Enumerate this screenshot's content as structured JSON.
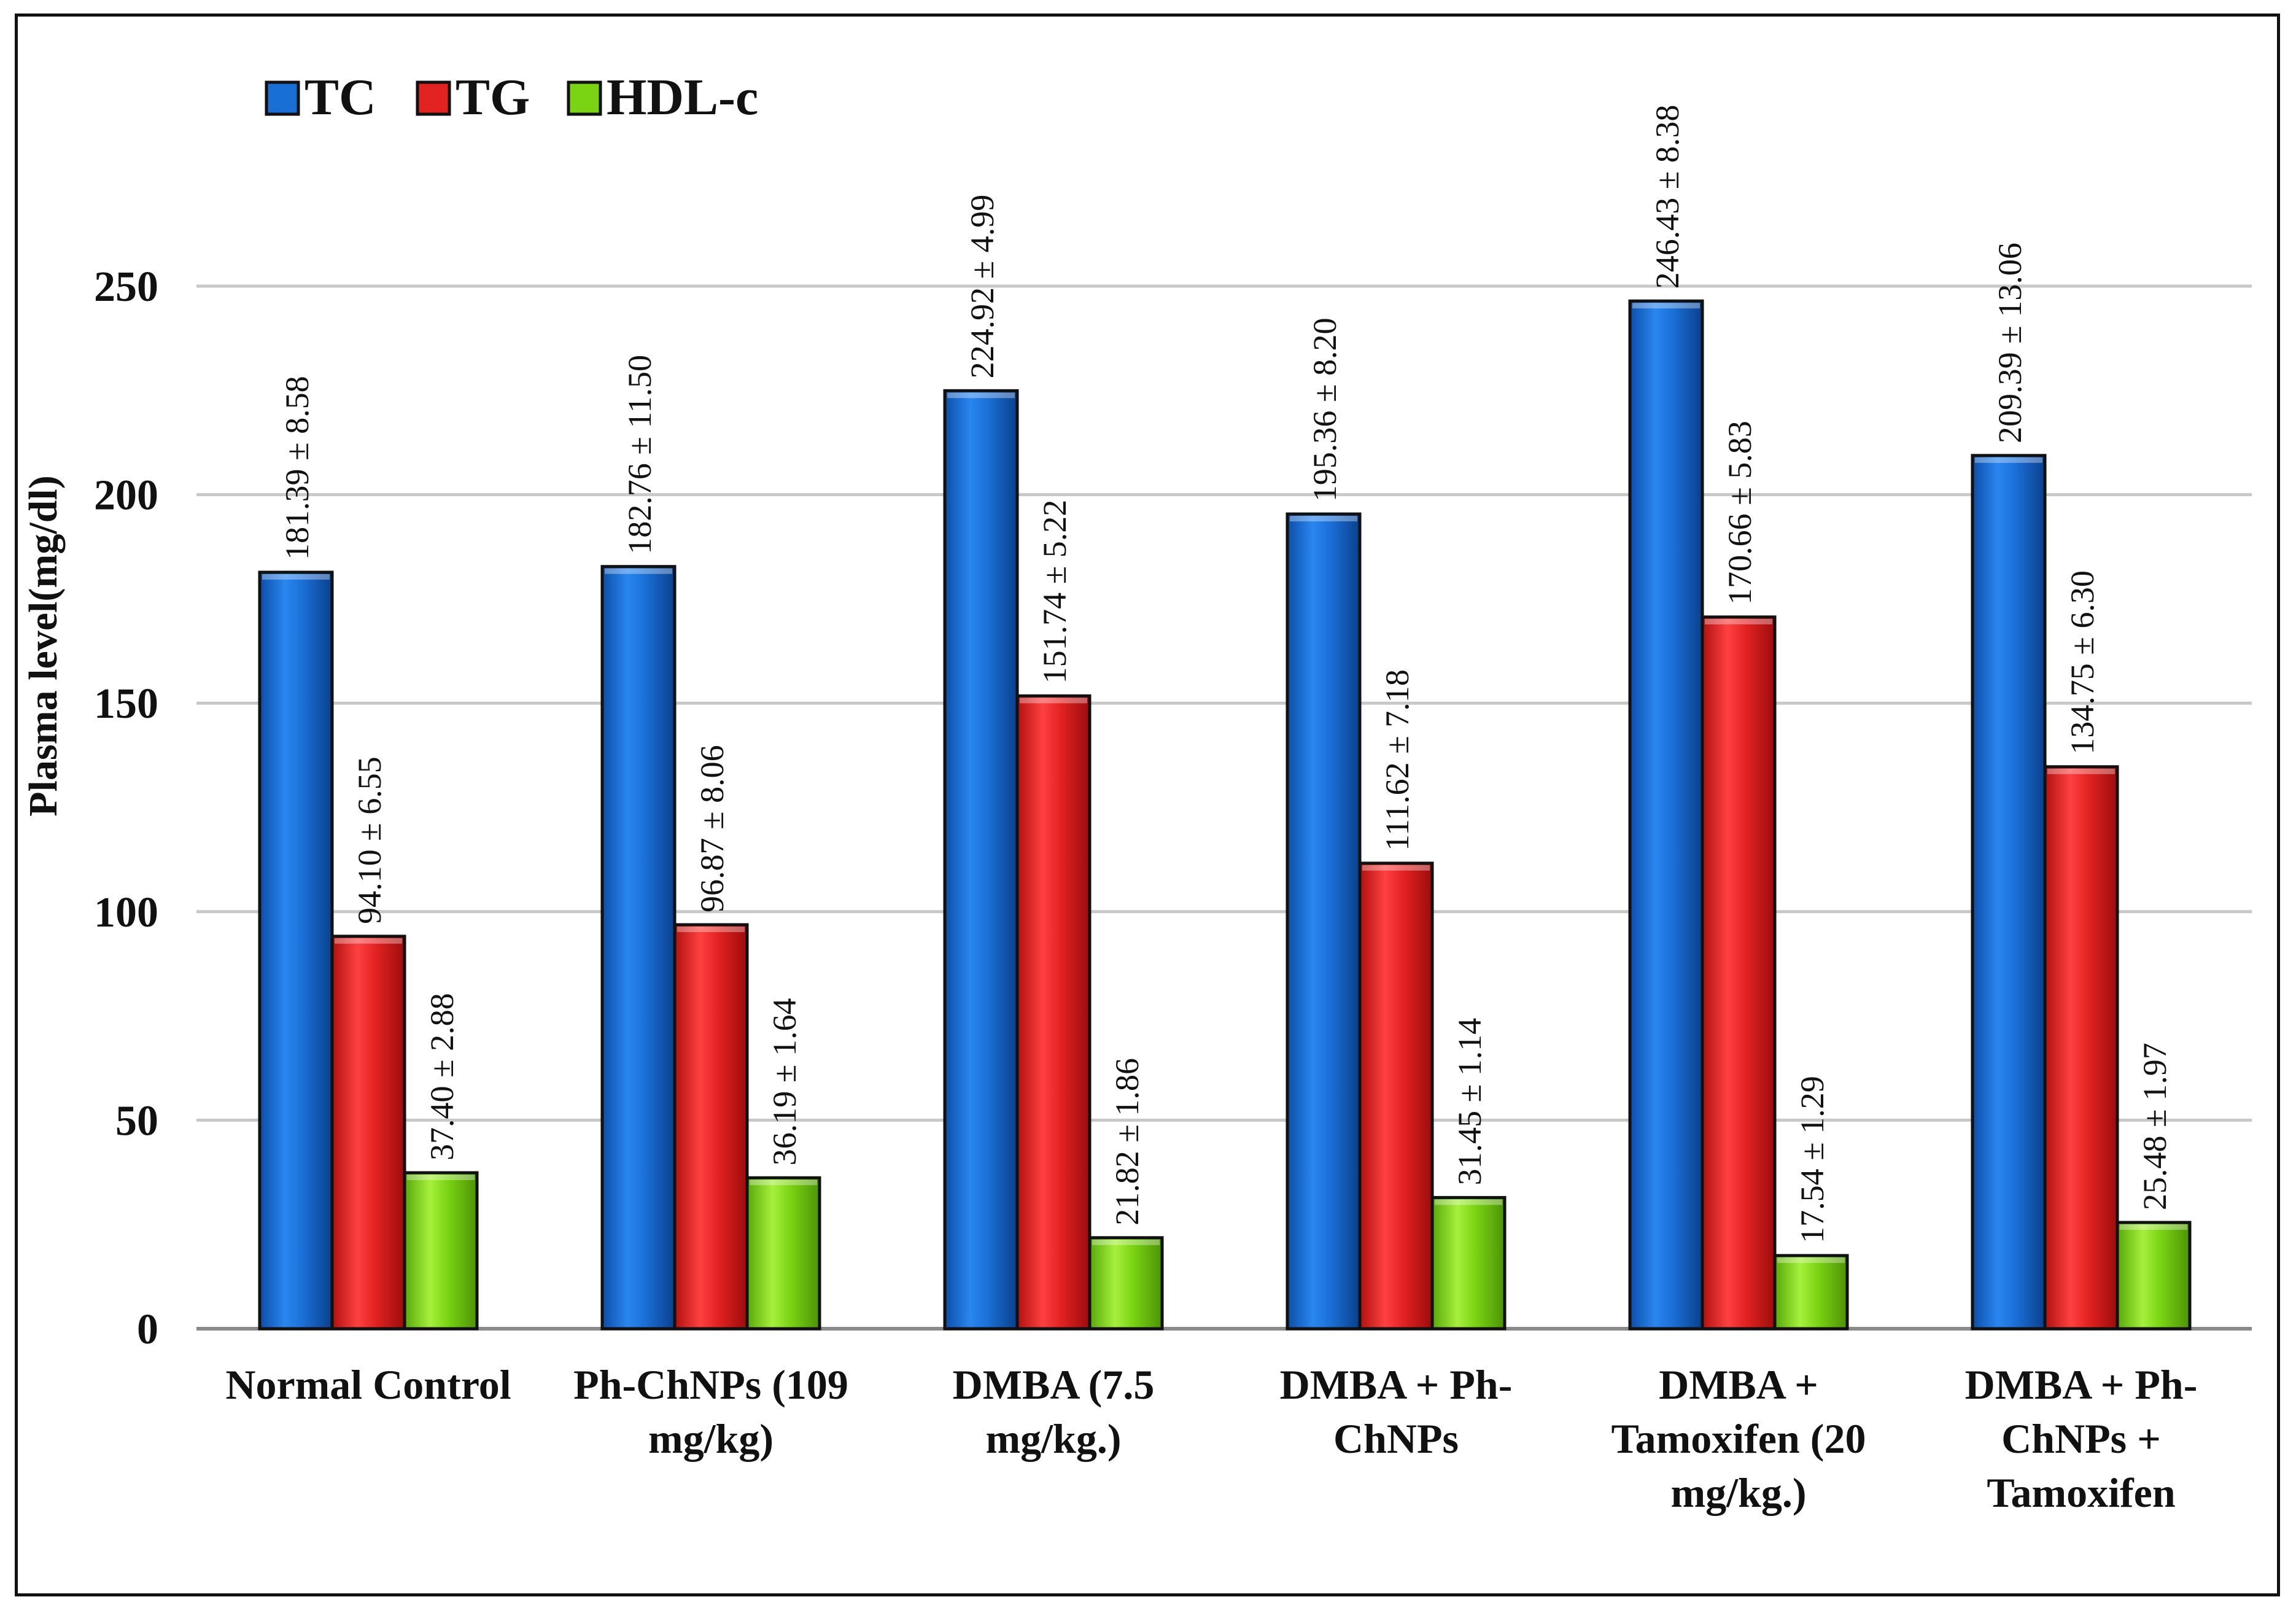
{
  "chart_data": {
    "type": "bar",
    "title": "",
    "ylabel": "Plasma level(mg/dl)",
    "xlabel": "",
    "ylim": [
      0,
      250
    ],
    "yticks": [
      0,
      50,
      100,
      150,
      200,
      250
    ],
    "grid": true,
    "legend_position": "top-left",
    "categories": [
      [
        "Normal Control"
      ],
      [
        "Ph-ChNPs (109",
        "mg/kg)"
      ],
      [
        "DMBA (7.5",
        "mg/kg.)"
      ],
      [
        "DMBA + Ph-",
        "ChNPs"
      ],
      [
        "DMBA +",
        "Tamoxifen (20",
        "mg/kg.)"
      ],
      [
        "DMBA + Ph-",
        "ChNPs +",
        "Tamoxifen"
      ]
    ],
    "series": [
      {
        "name": "TC",
        "color": "#1a6fd6",
        "values": [
          181.39,
          182.76,
          224.92,
          195.36,
          246.43,
          209.39
        ],
        "labels": [
          "181.39 ± 8.58",
          "182.76 ± 11.50",
          "224.92 ± 4.99",
          "195.36 ± 8.20",
          "246.43 ± 8.38",
          "209.39 ± 13.06"
        ]
      },
      {
        "name": "TG",
        "color": "#e32222",
        "values": [
          94.1,
          96.87,
          151.74,
          111.62,
          170.66,
          134.75
        ],
        "labels": [
          "94.10 ± 6.55",
          "96.87 ± 8.06",
          "151.74 ± 5.22",
          "111.62 ± 7.18",
          "170.66 ± 5.83",
          "134.75 ± 6.30"
        ]
      },
      {
        "name": "HDL-c",
        "color": "#7ad313",
        "values": [
          37.4,
          36.19,
          21.82,
          31.45,
          17.54,
          25.48
        ],
        "labels": [
          "37.40 ± 2.88",
          "36.19 ± 1.64",
          "21.82 ± 1.86",
          "31.45 ± 1.14",
          "17.54 ± 1.29",
          "25.48 ± 1.97"
        ]
      }
    ]
  }
}
